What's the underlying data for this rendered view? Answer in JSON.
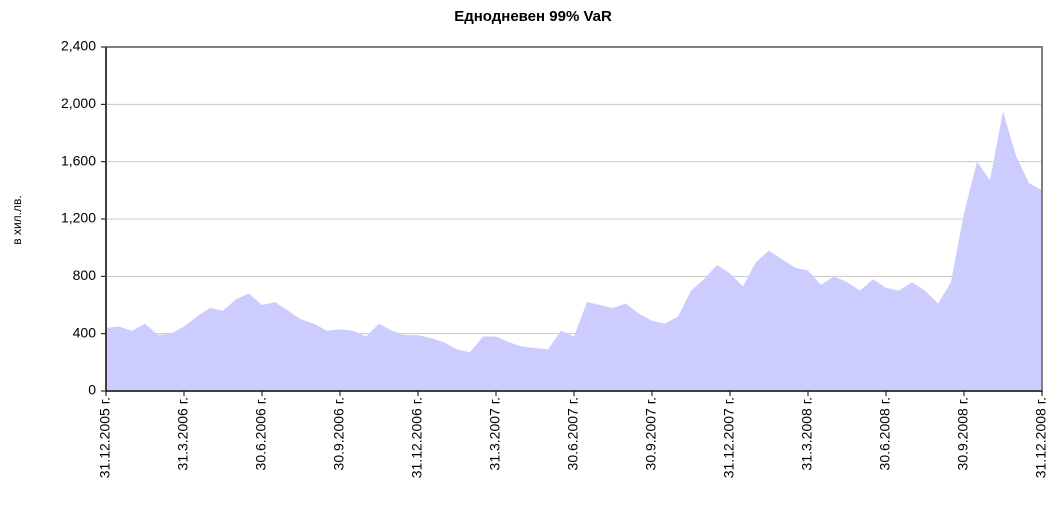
{
  "chart_data": {
    "type": "area",
    "title": "Еднодневен 99% VaR",
    "y_label": "в хил.лв.",
    "categories": [
      "31.12.2005 г.",
      null,
      null,
      null,
      null,
      null,
      "31.3.2006 г.",
      null,
      null,
      null,
      null,
      null,
      "30.6.2006 г.",
      null,
      null,
      null,
      null,
      null,
      "30.9.2006 г.",
      null,
      null,
      null,
      null,
      null,
      "31.12.2006 г.",
      null,
      null,
      null,
      null,
      null,
      "31.3.2007 г.",
      null,
      null,
      null,
      null,
      null,
      "30.6.2007 г.",
      null,
      null,
      null,
      null,
      null,
      "30.9.2007 г.",
      null,
      null,
      null,
      null,
      null,
      "31.12.2007 г.",
      null,
      null,
      null,
      null,
      null,
      "31.3.2008 г.",
      null,
      null,
      null,
      null,
      null,
      "30.6.2008 г.",
      null,
      null,
      null,
      null,
      null,
      "30.9.2008 г.",
      null,
      null,
      null,
      null,
      null,
      "31.12.2008 г."
    ],
    "values": [
      440,
      450,
      420,
      470,
      390,
      400,
      450,
      520,
      580,
      560,
      640,
      680,
      600,
      620,
      560,
      500,
      470,
      420,
      430,
      420,
      380,
      470,
      420,
      390,
      390,
      370,
      340,
      290,
      270,
      380,
      380,
      340,
      310,
      300,
      290,
      420,
      380,
      620,
      600,
      580,
      610,
      540,
      490,
      470,
      520,
      700,
      780,
      880,
      820,
      730,
      900,
      980,
      920,
      860,
      840,
      740,
      800,
      760,
      700,
      780,
      720,
      700,
      760,
      700,
      610,
      760,
      1240,
      1600,
      1470,
      1950,
      1640,
      1450,
      1400
    ],
    "color": "#ccccff",
    "ylim": [
      0,
      2400
    ],
    "yticks": [
      0,
      400,
      800,
      {
        "value": 1200,
        "label": "1,200"
      },
      {
        "value": 1600,
        "label": "1,600"
      },
      {
        "value": 2000,
        "label": "2,000"
      },
      {
        "value": 2400,
        "label": "2,400"
      }
    ],
    "grid": true
  }
}
